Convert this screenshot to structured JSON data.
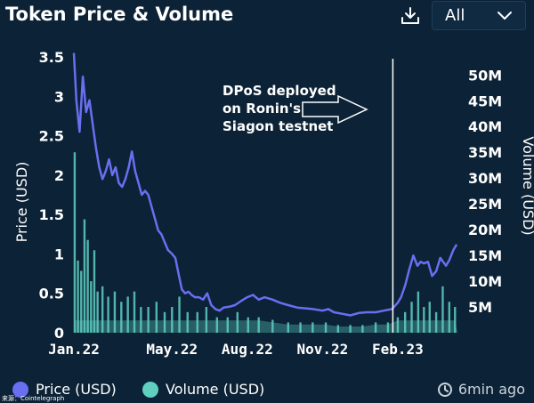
{
  "header": {
    "title": "Token Price & Volume",
    "download_icon": "download-icon",
    "range_value": "All",
    "range_icon": "chevron-down-icon"
  },
  "chart_data": {
    "type": "line",
    "title": "Token Price & Volume",
    "xlabel": "",
    "ylabel": "Price (USD)",
    "y2label": "Volume (USD)",
    "x_ticks": [
      "Jan.22",
      "May.22",
      "Aug.22",
      "Nov.22",
      "Feb.23"
    ],
    "y_ticks": [
      "0",
      "0.5",
      "1",
      "1.5",
      "2",
      "2.5",
      "3",
      "3.5"
    ],
    "y_tick_values": [
      0,
      0.5,
      1,
      1.5,
      2,
      2.5,
      3,
      3.5
    ],
    "y2_ticks": [
      "5M",
      "10M",
      "15M",
      "20M",
      "25M",
      "30M",
      "35M",
      "40M",
      "45M",
      "50M"
    ],
    "y2_tick_values": [
      5,
      10,
      15,
      20,
      25,
      30,
      35,
      40,
      45,
      50
    ],
    "ylim": [
      0,
      3.5
    ],
    "y2lim": [
      0,
      53.5
    ],
    "x_tick_dates": [
      "2022-01-01",
      "2022-05-01",
      "2022-08-01",
      "2022-11-01",
      "2023-02-01"
    ],
    "xlim": [
      "2022-01-01",
      "2023-04-15"
    ],
    "grid": false,
    "legend_position": "bottom",
    "series": [
      {
        "name": "Price (USD)",
        "color": "#6a6ef0",
        "axis": "left",
        "style": "line",
        "x": [
          "2022-01-01",
          "2022-01-04",
          "2022-01-08",
          "2022-01-12",
          "2022-01-16",
          "2022-01-20",
          "2022-01-24",
          "2022-01-28",
          "2022-02-01",
          "2022-02-05",
          "2022-02-09",
          "2022-02-13",
          "2022-02-17",
          "2022-02-21",
          "2022-02-25",
          "2022-03-01",
          "2022-03-05",
          "2022-03-09",
          "2022-03-13",
          "2022-03-17",
          "2022-03-21",
          "2022-03-25",
          "2022-03-29",
          "2022-04-02",
          "2022-04-06",
          "2022-04-10",
          "2022-04-14",
          "2022-04-18",
          "2022-04-22",
          "2022-04-26",
          "2022-05-01",
          "2022-05-05",
          "2022-05-09",
          "2022-05-13",
          "2022-05-17",
          "2022-05-21",
          "2022-05-25",
          "2022-05-29",
          "2022-06-03",
          "2022-06-08",
          "2022-06-13",
          "2022-06-18",
          "2022-06-23",
          "2022-06-28",
          "2022-07-03",
          "2022-07-10",
          "2022-07-17",
          "2022-07-24",
          "2022-08-01",
          "2022-08-08",
          "2022-08-15",
          "2022-08-22",
          "2022-09-01",
          "2022-09-10",
          "2022-09-20",
          "2022-10-01",
          "2022-10-10",
          "2022-10-20",
          "2022-11-01",
          "2022-11-08",
          "2022-11-15",
          "2022-11-25",
          "2022-12-05",
          "2022-12-15",
          "2022-12-25",
          "2023-01-05",
          "2023-01-15",
          "2023-01-25",
          "2023-02-01",
          "2023-02-05",
          "2023-02-10",
          "2023-02-15",
          "2023-02-20",
          "2023-02-25",
          "2023-03-01",
          "2023-03-05",
          "2023-03-10",
          "2023-03-15",
          "2023-03-20",
          "2023-03-25",
          "2023-04-01",
          "2023-04-05",
          "2023-04-10",
          "2023-04-14"
        ],
        "values": [
          3.55,
          2.95,
          2.55,
          3.25,
          2.8,
          2.95,
          2.65,
          2.35,
          2.1,
          1.95,
          2.05,
          2.2,
          2.0,
          2.1,
          1.9,
          1.85,
          1.95,
          2.1,
          2.3,
          2.05,
          1.9,
          1.75,
          1.8,
          1.75,
          1.6,
          1.45,
          1.3,
          1.25,
          1.15,
          1.05,
          1.0,
          0.95,
          0.75,
          0.55,
          0.5,
          0.52,
          0.48,
          0.45,
          0.45,
          0.42,
          0.5,
          0.35,
          0.3,
          0.28,
          0.32,
          0.33,
          0.35,
          0.4,
          0.45,
          0.48,
          0.42,
          0.45,
          0.42,
          0.38,
          0.35,
          0.32,
          0.31,
          0.3,
          0.28,
          0.3,
          0.26,
          0.24,
          0.22,
          0.25,
          0.26,
          0.26,
          0.28,
          0.3,
          0.38,
          0.45,
          0.6,
          0.8,
          0.98,
          0.85,
          0.9,
          0.88,
          0.9,
          0.72,
          0.78,
          0.95,
          0.85,
          0.92,
          1.05,
          1.12
        ]
      },
      {
        "name": "Volume (USD)",
        "color": "#5fcfbf",
        "axis": "right",
        "style": "bar",
        "x": [
          "2022-01-02",
          "2022-01-06",
          "2022-01-10",
          "2022-01-14",
          "2022-01-18",
          "2022-01-22",
          "2022-01-26",
          "2022-01-30",
          "2022-02-05",
          "2022-02-12",
          "2022-02-20",
          "2022-02-28",
          "2022-03-08",
          "2022-03-16",
          "2022-03-24",
          "2022-04-02",
          "2022-04-12",
          "2022-04-22",
          "2022-05-01",
          "2022-05-10",
          "2022-05-20",
          "2022-06-01",
          "2022-06-12",
          "2022-06-25",
          "2022-07-08",
          "2022-07-20",
          "2022-08-02",
          "2022-08-15",
          "2022-09-01",
          "2022-09-20",
          "2022-10-05",
          "2022-10-20",
          "2022-11-05",
          "2022-11-20",
          "2022-12-05",
          "2022-12-20",
          "2023-01-05",
          "2023-01-20",
          "2023-02-01",
          "2023-02-10",
          "2023-02-18",
          "2023-02-26",
          "2023-03-05",
          "2023-03-12",
          "2023-03-20",
          "2023-03-28",
          "2023-04-05",
          "2023-04-12"
        ],
        "values": [
          35,
          14,
          12,
          22,
          18,
          10,
          16,
          8,
          9,
          7,
          8,
          6,
          7,
          8,
          5,
          5,
          6,
          4,
          5,
          7,
          4,
          4,
          5,
          3,
          3,
          4,
          3,
          3,
          2.5,
          2,
          2,
          2,
          2,
          1.5,
          1.5,
          1.5,
          2,
          2,
          3,
          4,
          6,
          8,
          5,
          6,
          4,
          9,
          6,
          5
        ]
      }
    ],
    "annotation": {
      "text": [
        "DPoS deployed",
        "on Ronin's",
        "Siagon testnet"
      ],
      "line_date": "2023-01-26"
    }
  },
  "legend": {
    "items": [
      {
        "label": "Price (USD)",
        "color": "#6a6ef0"
      },
      {
        "label": "Volume (USD)",
        "color": "#5fcfbf"
      }
    ]
  },
  "footer": {
    "updated": "6min ago",
    "clock_icon": "clock-refresh-icon",
    "source": "来源：Cointelegraph"
  }
}
